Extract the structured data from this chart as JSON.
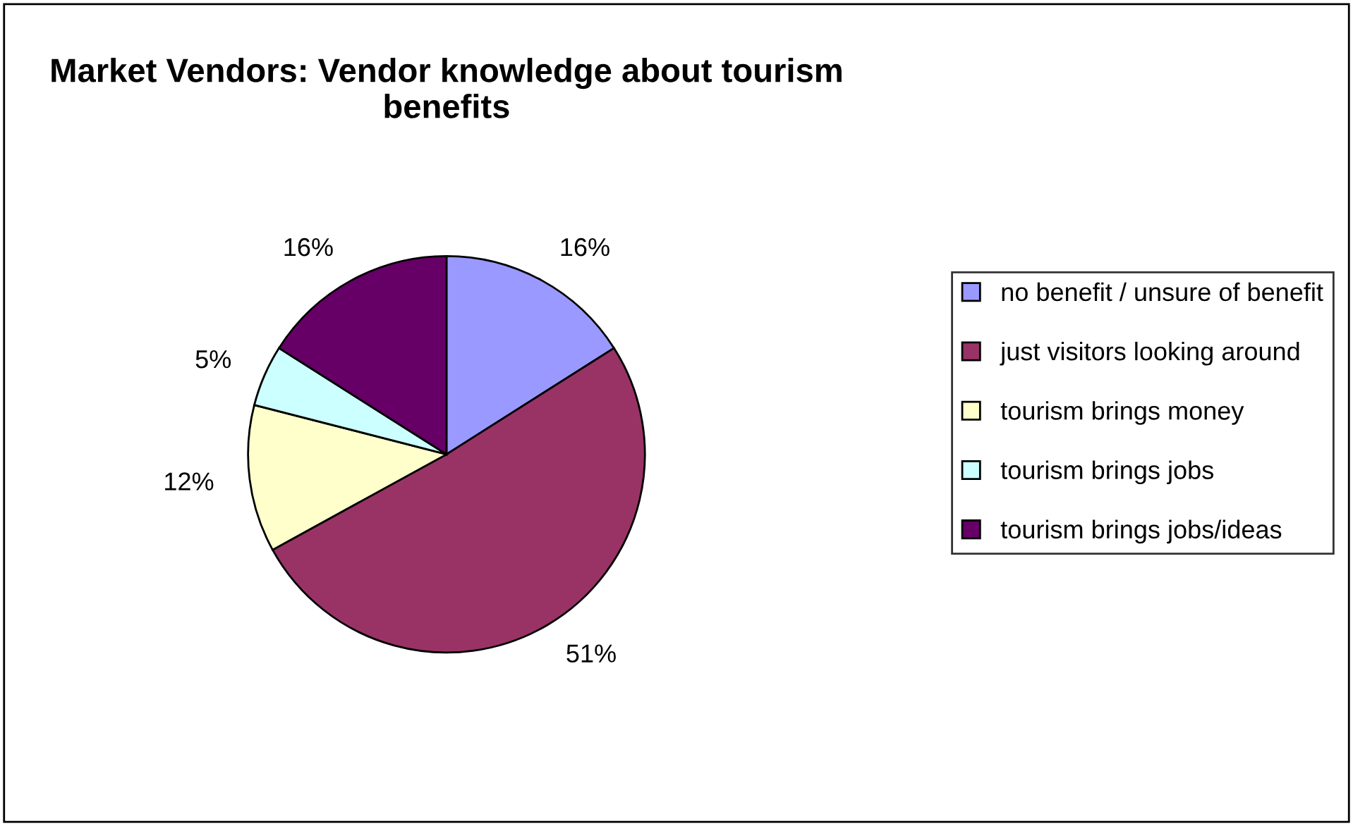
{
  "chart_data": {
    "type": "pie",
    "title": "Market Vendors: Vendor knowledge about tourism benefits",
    "categories": [
      "no benefit / unsure of benefit",
      "just visitors looking around",
      "tourism brings money",
      "tourism brings jobs",
      "tourism brings jobs/ideas"
    ],
    "values": [
      16,
      51,
      12,
      5,
      16
    ],
    "colors": [
      "#9999ff",
      "#993366",
      "#ffffcc",
      "#ccffff",
      "#660066"
    ],
    "value_labels": [
      "16%",
      "51%",
      "12%",
      "5%",
      "16%"
    ],
    "legend": "right"
  }
}
